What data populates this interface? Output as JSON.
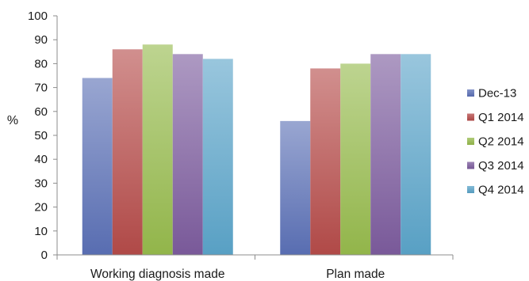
{
  "chart_data": {
    "type": "bar",
    "title": "",
    "xlabel": "",
    "ylabel": "%",
    "ylim": [
      0,
      100
    ],
    "yticks": [
      0,
      10,
      20,
      30,
      40,
      50,
      60,
      70,
      80,
      90,
      100
    ],
    "grid": false,
    "legend_position": "right",
    "categories": [
      "Working diagnosis made",
      "Plan made"
    ],
    "series": [
      {
        "name": "Dec-13",
        "values": [
          74,
          56
        ],
        "color": "#5a6fb5"
      },
      {
        "name": "Q1 2014",
        "values": [
          86,
          78
        ],
        "color": "#b44a48"
      },
      {
        "name": "Q2 2014",
        "values": [
          88,
          80
        ],
        "color": "#95b94c"
      },
      {
        "name": "Q3 2014",
        "values": [
          84,
          84
        ],
        "color": "#7b5b9c"
      },
      {
        "name": "Q4 2014",
        "values": [
          82,
          84
        ],
        "color": "#5aa3c8"
      }
    ]
  }
}
